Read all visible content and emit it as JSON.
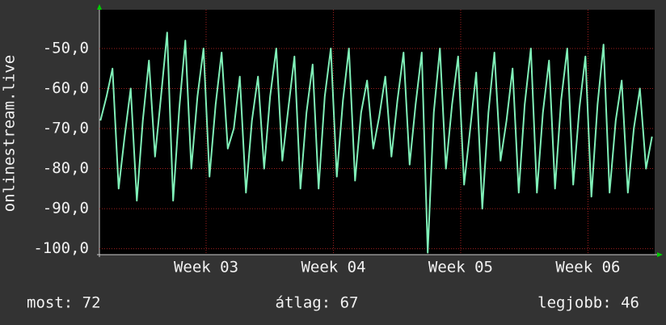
{
  "chart_data": {
    "type": "line",
    "y_label": "onlinestream.live",
    "x": [
      2.17,
      2.218,
      2.265,
      2.313,
      2.36,
      2.408,
      2.456,
      2.503,
      2.551,
      2.599,
      2.646,
      2.694,
      2.741,
      2.789,
      2.837,
      2.884,
      2.932,
      2.98,
      3.027,
      3.075,
      3.122,
      3.17,
      3.218,
      3.265,
      3.313,
      3.36,
      3.408,
      3.456,
      3.503,
      3.551,
      3.599,
      3.646,
      3.694,
      3.741,
      3.789,
      3.837,
      3.884,
      3.932,
      3.98,
      4.027,
      4.075,
      4.122,
      4.17,
      4.218,
      4.265,
      4.313,
      4.36,
      4.408,
      4.456,
      4.503,
      4.551,
      4.599,
      4.646,
      4.694,
      4.741,
      4.789,
      4.837,
      4.884,
      4.932,
      4.98,
      5.027,
      5.075,
      5.122,
      5.17,
      5.218,
      5.265,
      5.313,
      5.36,
      5.408,
      5.456,
      5.503,
      5.551,
      5.599,
      5.646,
      5.694,
      5.741,
      5.789,
      5.837,
      5.884,
      5.932,
      5.98,
      6.027,
      6.075,
      6.122,
      6.17,
      6.218,
      6.265,
      6.313,
      6.36,
      6.408,
      6.456,
      6.503
    ],
    "series": [
      {
        "color": "#80f0b8",
        "values": [
          -68,
          -62,
          -55,
          -85,
          -72,
          -60,
          -88,
          -68,
          -53,
          -77,
          -62,
          -46,
          -88,
          -65,
          -48,
          -80,
          -62,
          -50,
          -82,
          -64,
          -51,
          -75,
          -70,
          -57,
          -86,
          -68,
          -57,
          -80,
          -62,
          -50,
          -78,
          -65,
          -52,
          -85,
          -66,
          -54,
          -85,
          -62,
          -50,
          -82,
          -63,
          -50,
          -83,
          -66,
          -58,
          -75,
          -67,
          -57,
          -77,
          -63,
          -51,
          -79,
          -64,
          -51,
          -101,
          -66,
          -50,
          -80,
          -64,
          -52,
          -84,
          -70,
          -56,
          -90,
          -66,
          -51,
          -78,
          -68,
          -55,
          -86,
          -64,
          -50,
          -86,
          -66,
          -53,
          -85,
          -63,
          -50,
          -84,
          -65,
          -52,
          -87,
          -64,
          -49,
          -86,
          -68,
          -58,
          -86,
          -70,
          -60,
          -80,
          -72
        ]
      }
    ],
    "xlim": [
      2.162,
      6.524
    ],
    "xticks": [
      {
        "value": 3,
        "label": "Week 03"
      },
      {
        "value": 4,
        "label": "Week 04"
      },
      {
        "value": 5,
        "label": "Week 05"
      },
      {
        "value": 6,
        "label": "Week 06"
      }
    ],
    "ylim": [
      -101.5,
      -40.3
    ],
    "yticks": [
      {
        "value": -50,
        "label": "-50,0"
      },
      {
        "value": -60,
        "label": "-60,0"
      },
      {
        "value": -70,
        "label": "-70,0"
      },
      {
        "value": -80,
        "label": "-80,0"
      },
      {
        "value": -90,
        "label": "-90,0"
      },
      {
        "value": -100,
        "label": "-100,0"
      }
    ],
    "grid": true,
    "stats": [
      "most: 72",
      "átlag: 67",
      "legjobb: 46"
    ]
  }
}
